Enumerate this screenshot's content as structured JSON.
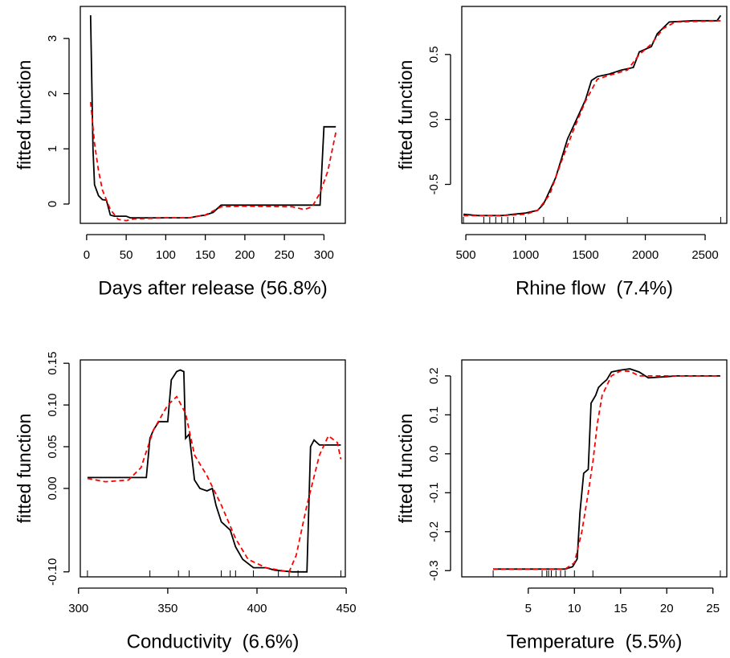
{
  "chart_data": [
    {
      "type": "line",
      "xlabel": "Days after release (56.8%)",
      "ylabel": "fitted function",
      "xlim": [
        -8,
        327
      ],
      "ylim": [
        -0.35,
        3.58
      ],
      "xticks": [
        0,
        50,
        100,
        150,
        200,
        250,
        300
      ],
      "yticks": [
        0,
        1,
        2,
        3
      ],
      "series": [
        {
          "color": "#000000",
          "dashed": false,
          "x": [
            5,
            8,
            10,
            15,
            20,
            25,
            30,
            35,
            50,
            55,
            130,
            140,
            150,
            160,
            170,
            280,
            295,
            300,
            315
          ],
          "values": [
            3.42,
            1.0,
            0.35,
            0.15,
            0.08,
            0.07,
            -0.2,
            -0.22,
            -0.22,
            -0.25,
            -0.25,
            -0.22,
            -0.2,
            -0.15,
            -0.02,
            -0.02,
            -0.02,
            1.4,
            1.4
          ]
        },
        {
          "color": "#ff0000",
          "dashed": true,
          "x": [
            5,
            10,
            15,
            20,
            30,
            40,
            50,
            60,
            100,
            130,
            150,
            170,
            200,
            260,
            275,
            285,
            295,
            305,
            315
          ],
          "values": [
            1.85,
            1.1,
            0.6,
            0.25,
            -0.1,
            -0.28,
            -0.3,
            -0.27,
            -0.25,
            -0.25,
            -0.2,
            -0.05,
            -0.04,
            -0.05,
            -0.1,
            -0.05,
            0.2,
            0.6,
            1.3
          ]
        }
      ]
    },
    {
      "type": "line",
      "xlabel": "Rhine flow  (7.4%)",
      "ylabel": "fitted function",
      "xlim": [
        466,
        2681
      ],
      "ylim": [
        -0.8,
        0.87
      ],
      "xticks": [
        500,
        1000,
        1500,
        2000,
        2500
      ],
      "yticks": [
        -0.5,
        {
          "value": 0,
          "label": "0.0"
        },
        0.5
      ],
      "rug": [
        480,
        650,
        700,
        750,
        800,
        850,
        900,
        1000,
        1150,
        1350,
        1850,
        2630
      ],
      "series": [
        {
          "color": "#000000",
          "dashed": false,
          "x": [
            480,
            600,
            800,
            900,
            1000,
            1100,
            1150,
            1200,
            1250,
            1300,
            1350,
            1400,
            1450,
            1500,
            1550,
            1600,
            1700,
            1800,
            1900,
            1950,
            2050,
            2100,
            2200,
            2400,
            2600,
            2630
          ],
          "values": [
            -0.73,
            -0.74,
            -0.74,
            -0.73,
            -0.72,
            -0.7,
            -0.65,
            -0.55,
            -0.45,
            -0.3,
            -0.15,
            -0.05,
            0.05,
            0.15,
            0.3,
            0.33,
            0.35,
            0.38,
            0.4,
            0.52,
            0.56,
            0.66,
            0.75,
            0.76,
            0.76,
            0.8
          ]
        },
        {
          "color": "#ff0000",
          "dashed": true,
          "x": [
            480,
            800,
            1000,
            1100,
            1200,
            1300,
            1400,
            1500,
            1600,
            1700,
            1850,
            1950,
            2050,
            2150,
            2250,
            2630
          ],
          "values": [
            -0.74,
            -0.74,
            -0.73,
            -0.7,
            -0.58,
            -0.32,
            -0.08,
            0.14,
            0.31,
            0.34,
            0.38,
            0.5,
            0.58,
            0.7,
            0.75,
            0.76
          ]
        }
      ]
    },
    {
      "type": "line",
      "xlabel": "Conductivity  (6.6%)",
      "ylabel": "fitted function",
      "xlim": [
        301,
        449.5
      ],
      "ylim": [
        -0.106,
        0.154
      ],
      "xticks": [
        300,
        350,
        400,
        450
      ],
      "yticks": [
        {
          "value": -0.1,
          "label": "-0.10"
        },
        {
          "value": 0,
          "label": "0.00"
        },
        0.05,
        {
          "value": 0.1,
          "label": "0.10"
        },
        0.15
      ],
      "rug": [
        305,
        340,
        356,
        362,
        380,
        385,
        388,
        398,
        412,
        418,
        423,
        447
      ],
      "series": [
        {
          "color": "#000000",
          "dashed": false,
          "x": [
            305,
            338,
            340,
            342,
            345,
            350,
            352,
            355,
            357,
            359,
            360,
            362,
            365,
            368,
            372,
            375,
            377,
            380,
            385,
            388,
            392,
            398,
            405,
            410,
            420,
            428,
            430,
            432,
            435,
            447
          ],
          "values": [
            0.013,
            0.013,
            0.06,
            0.07,
            0.08,
            0.08,
            0.13,
            0.14,
            0.142,
            0.14,
            0.06,
            0.065,
            0.01,
            0.0,
            -0.003,
            0.0,
            -0.02,
            -0.04,
            -0.05,
            -0.07,
            -0.085,
            -0.095,
            -0.095,
            -0.098,
            -0.1,
            -0.1,
            0.05,
            0.058,
            0.052,
            0.052
          ]
        },
        {
          "color": "#ff0000",
          "dashed": true,
          "x": [
            305,
            315,
            328,
            335,
            342,
            350,
            355,
            360,
            365,
            372,
            380,
            388,
            395,
            405,
            418,
            422,
            428,
            435,
            440,
            445,
            447
          ],
          "values": [
            0.012,
            0.008,
            0.01,
            0.025,
            0.07,
            0.1,
            0.11,
            0.09,
            0.04,
            0.015,
            -0.02,
            -0.06,
            -0.085,
            -0.095,
            -0.1,
            -0.08,
            -0.02,
            0.04,
            0.063,
            0.055,
            0.035
          ]
        }
      ]
    },
    {
      "type": "line",
      "xlabel": "Temperature  (5.5%)",
      "ylabel": "fitted function",
      "xlim": [
        -2.2,
        26.5
      ],
      "ylim": [
        -0.316,
        0.241
      ],
      "xticks": [
        5,
        10,
        15,
        20,
        25
      ],
      "yticks": [
        -0.3,
        -0.2,
        -0.1,
        {
          "value": 0,
          "label": "0.0"
        },
        0.1,
        0.2
      ],
      "rug": [
        1.2,
        6.5,
        7,
        7.2,
        7.5,
        8,
        8.5,
        9,
        10,
        12,
        25.8
      ],
      "series": [
        {
          "color": "#000000",
          "dashed": false,
          "x": [
            1.2,
            6,
            9,
            9.8,
            10.3,
            10.6,
            11,
            11.5,
            11.8,
            12.3,
            12.6,
            13,
            13.5,
            14,
            15,
            16,
            17,
            18,
            20,
            21,
            25.8
          ],
          "values": [
            -0.296,
            -0.296,
            -0.296,
            -0.29,
            -0.27,
            -0.15,
            -0.05,
            -0.04,
            0.13,
            0.15,
            0.17,
            0.18,
            0.19,
            0.21,
            0.215,
            0.218,
            0.21,
            0.195,
            0.198,
            0.2,
            0.2
          ]
        },
        {
          "color": "#ff0000",
          "dashed": true,
          "x": [
            1.2,
            9,
            10,
            10.8,
            11.5,
            12,
            12.5,
            13,
            14,
            15,
            16,
            17,
            18,
            25.8
          ],
          "values": [
            -0.296,
            -0.296,
            -0.28,
            -0.2,
            -0.1,
            -0.02,
            0.08,
            0.15,
            0.2,
            0.213,
            0.212,
            0.2,
            0.2,
            0.2
          ]
        }
      ]
    }
  ]
}
